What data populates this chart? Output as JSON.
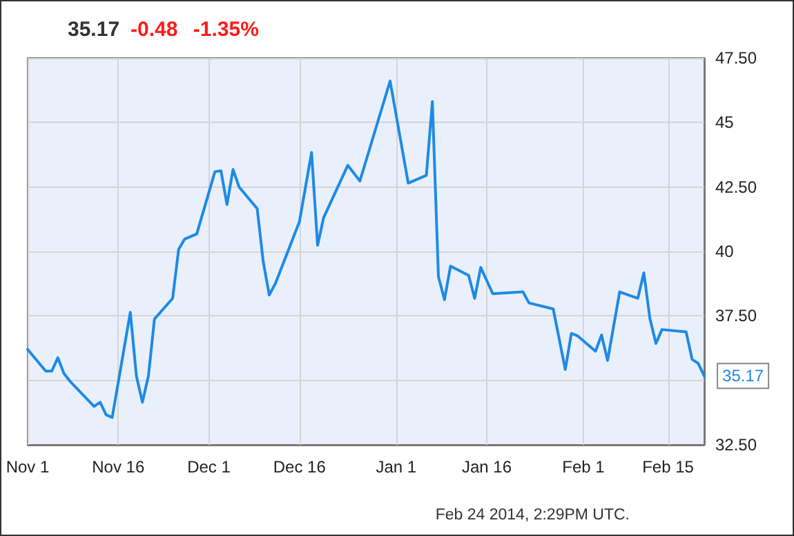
{
  "chart_data": {
    "type": "line",
    "title": "35.17",
    "subtitle": "-0.48 -1.35%",
    "annotations": [
      "Feb 24 2014, 2:29PM UTC."
    ],
    "x": [
      "2013-11-01",
      "2013-11-04",
      "2013-11-05",
      "2013-11-06",
      "2013-11-07",
      "2013-11-08",
      "2013-11-12",
      "2013-11-13",
      "2013-11-14",
      "2013-11-15",
      "2013-11-18",
      "2013-11-19",
      "2013-11-20",
      "2013-11-21",
      "2013-11-22",
      "2013-11-25",
      "2013-11-26",
      "2013-11-27",
      "2013-11-29",
      "2013-12-02",
      "2013-12-03",
      "2013-12-04",
      "2013-12-05",
      "2013-12-06",
      "2013-12-09",
      "2013-12-10",
      "2013-12-11",
      "2013-12-12",
      "2013-12-16",
      "2013-12-18",
      "2013-12-19",
      "2013-12-20",
      "2013-12-24",
      "2013-12-26",
      "2013-12-31",
      "2014-01-03",
      "2014-01-06",
      "2014-01-07",
      "2014-01-08",
      "2014-01-09",
      "2014-01-10",
      "2014-01-13",
      "2014-01-14",
      "2014-01-15",
      "2014-01-17",
      "2014-01-22",
      "2014-01-23",
      "2014-01-27",
      "2014-01-29",
      "2014-01-30",
      "2014-01-31",
      "2014-02-03",
      "2014-02-04",
      "2014-02-05",
      "2014-02-07",
      "2014-02-10",
      "2014-02-11",
      "2014-02-12",
      "2014-02-13",
      "2014-02-14",
      "2014-02-18",
      "2014-02-19",
      "2014-02-20",
      "2014-02-21"
    ],
    "series": [
      {
        "color": "#1e8ae6",
        "values": [
          36.2,
          35.36,
          35.36,
          35.88,
          35.27,
          34.97,
          33.99,
          34.15,
          33.66,
          33.56,
          37.64,
          35.18,
          34.15,
          35.18,
          37.38,
          38.18,
          40.08,
          40.48,
          40.68,
          43.09,
          43.13,
          41.82,
          43.18,
          42.5,
          41.66,
          39.6,
          38.31,
          38.75,
          41.16,
          43.84,
          40.24,
          41.31,
          43.34,
          42.73,
          46.61,
          42.65,
          42.95,
          45.81,
          39.02,
          38.13,
          39.43,
          39.07,
          38.18,
          39.38,
          38.36,
          38.43,
          38.0,
          37.77,
          35.42,
          36.82,
          36.73,
          36.13,
          36.76,
          35.77,
          38.43,
          38.18,
          39.17,
          37.41,
          36.43,
          36.97,
          36.88,
          35.81,
          35.66,
          35.17
        ],
        "value_labels": [
          null,
          null,
          null,
          null,
          null,
          null,
          null,
          null,
          null,
          null,
          null,
          null,
          null,
          null,
          null,
          null,
          null,
          null,
          null,
          null,
          null,
          null,
          null,
          null,
          null,
          null,
          null,
          null,
          null,
          null,
          null,
          null,
          null,
          null,
          null,
          null,
          null,
          null,
          null,
          null,
          null,
          null,
          null,
          null,
          null,
          null,
          null,
          null,
          null,
          null,
          null,
          null,
          null,
          null,
          null,
          null,
          null,
          null,
          null,
          null,
          null,
          null,
          null,
          "35.17"
        ]
      }
    ],
    "xlim": [
      "2013-11-01",
      "2014-02-21"
    ],
    "xticks": [
      {
        "value": "2013-11-01",
        "label": "Nov 1"
      },
      {
        "value": "2013-11-16",
        "label": "Nov 16"
      },
      {
        "value": "2013-12-01",
        "label": "Dec 1"
      },
      {
        "value": "2013-12-16",
        "label": "Dec 16"
      },
      {
        "value": "2014-01-01",
        "label": "Jan 1"
      },
      {
        "value": "2014-01-16",
        "label": "Jan 16"
      },
      {
        "value": "2014-02-01",
        "label": "Feb 1"
      },
      {
        "value": "2014-02-15",
        "label": "Feb 15"
      }
    ],
    "ylim": [
      32.5,
      47.5
    ],
    "yticks": [
      {
        "value": 32.5,
        "label": "32.50"
      },
      {
        "value": 35,
        "label": null
      },
      {
        "value": 37.5,
        "label": "37.50"
      },
      40,
      {
        "value": 42.5,
        "label": "42.50"
      },
      45,
      {
        "value": 47.5,
        "label": "47.50"
      }
    ],
    "grid": true,
    "marker": "none",
    "line_style": "solid"
  }
}
